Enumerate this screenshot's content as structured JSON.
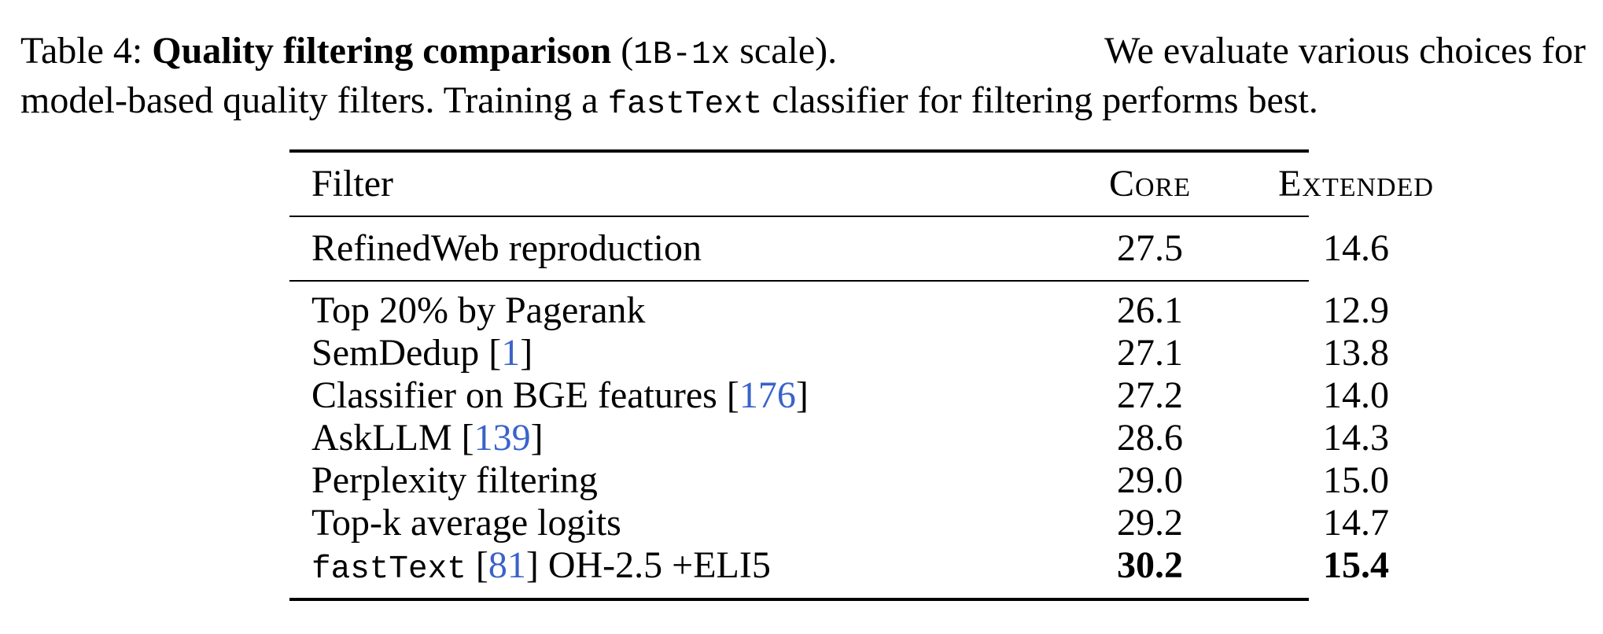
{
  "caption": {
    "label": "Table 4:",
    "title": "Quality filtering comparison",
    "paren_open": "(",
    "scale_code": "1B-1x",
    "scale_rest": " scale).",
    "line1_rest": "We evaluate various choices for",
    "line2_a": "model-based quality filters. Training a ",
    "line2_code": "fastText",
    "line2_b": " classifier for filtering performs best."
  },
  "table": {
    "headers": {
      "filter": "Filter",
      "core": "Core",
      "extended": "Extended"
    },
    "baseline": {
      "filter": "RefinedWeb reproduction",
      "core": "27.5",
      "extended": "14.6"
    },
    "rows": [
      {
        "filter": "Top 20% by Pagerank",
        "cite": "",
        "core": "26.1",
        "extended": "12.9"
      },
      {
        "filter": "SemDedup [",
        "cite": "1",
        "after": "]",
        "core": "27.1",
        "extended": "13.8"
      },
      {
        "filter": "Classifier on BGE features [",
        "cite": "176",
        "after": "]",
        "core": "27.2",
        "extended": "14.0"
      },
      {
        "filter": "AskLLM [",
        "cite": "139",
        "after": "]",
        "core": "28.6",
        "extended": "14.3"
      },
      {
        "filter": "Perplexity filtering",
        "cite": "",
        "core": "29.0",
        "extended": "15.0"
      },
      {
        "filter": "Top-k average logits",
        "cite": "",
        "core": "29.2",
        "extended": "14.7"
      }
    ],
    "best": {
      "code": "fastText",
      "pre": " [",
      "cite": "81",
      "post": "] OH-2.5 +ELI5",
      "core": "30.2",
      "extended": "15.4"
    }
  }
}
